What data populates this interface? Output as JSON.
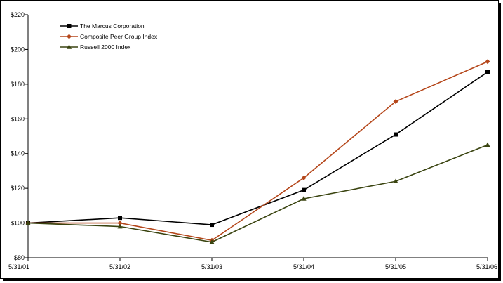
{
  "chart_data": {
    "type": "line",
    "title": "",
    "xlabel": "",
    "ylabel": "",
    "categories": [
      "5/31/01",
      "5/31/02",
      "5/31/03",
      "5/31/04",
      "5/31/05",
      "5/31/06"
    ],
    "ylim": [
      80,
      220
    ],
    "yticks": [
      80,
      100,
      120,
      140,
      160,
      180,
      200,
      220
    ],
    "ytick_labels": [
      "$80",
      "$100",
      "$120",
      "$140",
      "$160",
      "$180",
      "$200",
      "$220"
    ],
    "grid": false,
    "legend_position": "top-left",
    "series": [
      {
        "name": "The Marcus Corporation",
        "values": [
          100,
          103,
          99,
          119,
          151,
          187
        ],
        "color": "#000000",
        "marker": "square"
      },
      {
        "name": "Composite Peer Group Index",
        "values": [
          100,
          100,
          90,
          126,
          170,
          193
        ],
        "color": "#b5471b",
        "marker": "diamond"
      },
      {
        "name": "Russell 2000 Index",
        "values": [
          100,
          98,
          89,
          114,
          124,
          145
        ],
        "color": "#3a4410",
        "marker": "triangle"
      }
    ]
  }
}
